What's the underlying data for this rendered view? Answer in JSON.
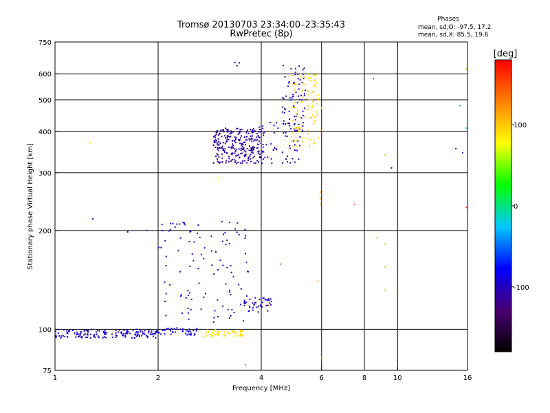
{
  "chart_data": {
    "type": "scatter",
    "title": "Tromsø 20130703 23:34:00–23:35:43",
    "subtitle": "RwPretec (8p)",
    "stats": {
      "heading": "Phases",
      "line_o": "mean, sd,O:  -97.5, 17.2",
      "line_x": "mean, sd,X:   85.5, 19.6"
    },
    "xlabel": "Frequency [MHz]",
    "ylabel": "Stationary phase Virtual Height [km]",
    "xscale": "log",
    "yscale": "log",
    "xlim": [
      1,
      16
    ],
    "ylim": [
      75,
      750
    ],
    "xticks": [
      {
        "v": 1,
        "label": "1"
      },
      {
        "v": 2,
        "label": "2"
      },
      {
        "v": 4,
        "label": "4"
      },
      {
        "v": 6,
        "label": "6"
      },
      {
        "v": 8,
        "label": "8"
      },
      {
        "v": 10,
        "label": "10"
      },
      {
        "v": 16,
        "label": "16"
      }
    ],
    "yticks": [
      {
        "v": 75,
        "label": "75"
      },
      {
        "v": 100,
        "label": "100"
      },
      {
        "v": 200,
        "label": "200"
      },
      {
        "v": 300,
        "label": "300"
      },
      {
        "v": 400,
        "label": "400"
      },
      {
        "v": 500,
        "label": "500"
      },
      {
        "v": 600,
        "label": "600"
      },
      {
        "v": 750,
        "label": "750"
      }
    ],
    "grid": true,
    "colorbar": {
      "label": "[deg]",
      "range": [
        -180,
        180
      ],
      "ticks": [
        {
          "v": 100,
          "label": "100"
        },
        {
          "v": 0,
          "label": "0"
        },
        {
          "v": -100,
          "label": "-100"
        }
      ],
      "stops": [
        "#000000",
        "#4a0070",
        "#0000ff",
        "#00c8ff",
        "#00ff00",
        "#ffff00",
        "#ff8000",
        "#ff0000"
      ]
    },
    "clusters": [
      {
        "name": "ground-trace",
        "x": [
          1.0,
          2.0
        ],
        "y": [
          94,
          100
        ],
        "phase": -95,
        "n": 160
      },
      {
        "name": "ground-trace-2",
        "x": [
          2.0,
          2.6
        ],
        "y": [
          96,
          101
        ],
        "phase": -90,
        "n": 40
      },
      {
        "name": "x-trace-low",
        "x": [
          2.7,
          3.6
        ],
        "y": [
          95,
          100
        ],
        "phase": 90,
        "n": 45
      },
      {
        "name": "f-region-o",
        "x": [
          2.9,
          4.0
        ],
        "y": [
          320,
          410
        ],
        "phase": -110,
        "n": 260
      },
      {
        "name": "f-region-o2",
        "x": [
          3.9,
          5.2
        ],
        "y": [
          320,
          430
        ],
        "phase": -105,
        "n": 60
      },
      {
        "name": "f-o-rise",
        "x": [
          4.6,
          5.4
        ],
        "y": [
          400,
          640
        ],
        "phase": -100,
        "n": 70
      },
      {
        "name": "f-x-rise",
        "x": [
          4.9,
          6.0
        ],
        "y": [
          360,
          600
        ],
        "phase": 95,
        "n": 90
      },
      {
        "name": "e-traces",
        "x": [
          2.0,
          3.7
        ],
        "y": [
          105,
          215
        ],
        "phase": -95,
        "n": 110
      },
      {
        "name": "spread-lower",
        "x": [
          3.5,
          4.3
        ],
        "y": [
          112,
          125
        ],
        "phase": -100,
        "n": 40
      }
    ],
    "points": [
      {
        "x": 1.29,
        "y": 217,
        "phase": -100
      },
      {
        "x": 1.27,
        "y": 370,
        "phase": 100
      },
      {
        "x": 1.63,
        "y": 198,
        "phase": -100
      },
      {
        "x": 1.85,
        "y": 200,
        "phase": -110
      },
      {
        "x": 3.35,
        "y": 650,
        "phase": -115
      },
      {
        "x": 3.45,
        "y": 648,
        "phase": -110
      },
      {
        "x": 3.4,
        "y": 635,
        "phase": -100
      },
      {
        "x": 3.6,
        "y": 78,
        "phase": -40
      },
      {
        "x": 5.95,
        "y": 262,
        "phase": 110
      },
      {
        "x": 5.95,
        "y": 250,
        "phase": 110
      },
      {
        "x": 5.95,
        "y": 240,
        "phase": 110
      },
      {
        "x": 6.0,
        "y": 82,
        "phase": 110
      },
      {
        "x": 5.85,
        "y": 140,
        "phase": 110
      },
      {
        "x": 7.5,
        "y": 240,
        "phase": 160
      },
      {
        "x": 8.5,
        "y": 580,
        "phase": 170
      },
      {
        "x": 9.2,
        "y": 340,
        "phase": 40
      },
      {
        "x": 9.6,
        "y": 310,
        "phase": -110
      },
      {
        "x": 8.7,
        "y": 190,
        "phase": 110
      },
      {
        "x": 9.2,
        "y": 182,
        "phase": 110
      },
      {
        "x": 9.2,
        "y": 155,
        "phase": 110
      },
      {
        "x": 9.2,
        "y": 132,
        "phase": 60
      },
      {
        "x": 15.2,
        "y": 480,
        "phase": -40
      },
      {
        "x": 15.5,
        "y": 345,
        "phase": -70
      },
      {
        "x": 14.8,
        "y": 355,
        "phase": -115
      },
      {
        "x": 15.9,
        "y": 410,
        "phase": -20
      },
      {
        "x": 15.9,
        "y": 620,
        "phase": 100
      },
      {
        "x": 15.9,
        "y": 235,
        "phase": 170
      },
      {
        "x": 4.55,
        "y": 158,
        "phase": 140
      },
      {
        "x": 4.2,
        "y": 118,
        "phase": 140
      },
      {
        "x": 3.0,
        "y": 290,
        "phase": 60
      }
    ]
  }
}
